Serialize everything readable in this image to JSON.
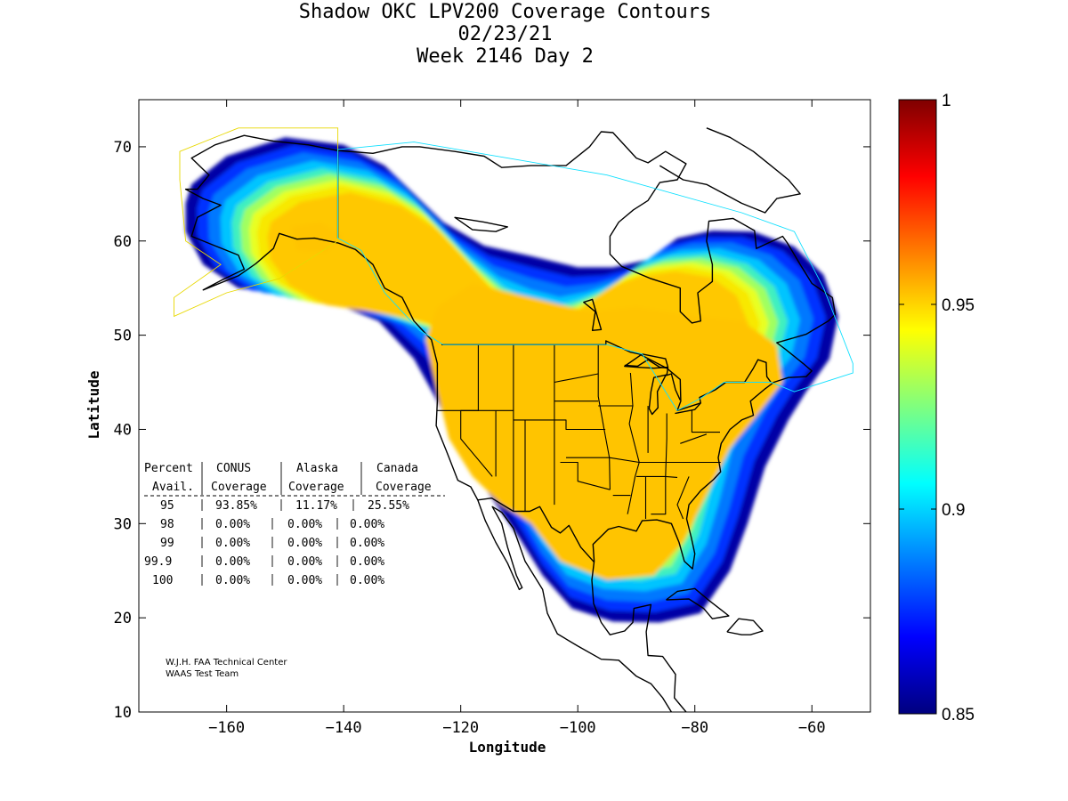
{
  "chart_data": {
    "type": "heatmap",
    "title": "Shadow OKC LPV200 Coverage Contours",
    "subtitle_date": "02/23/21",
    "subtitle_week": "Week 2146 Day 2",
    "xlabel": "Longitude",
    "ylabel": "Latitude",
    "xlim": [
      -175,
      -50
    ],
    "ylim": [
      10,
      75
    ],
    "x_ticks": [
      -160,
      -140,
      -120,
      -100,
      -80,
      -60
    ],
    "y_ticks": [
      10,
      20,
      30,
      40,
      50,
      60,
      70
    ],
    "colorbar": {
      "min": 0.85,
      "max": 1,
      "ticks": [
        0.85,
        0.9,
        0.95,
        1
      ],
      "tick_labels": [
        "0.85",
        "0.9",
        "0.95",
        "1"
      ],
      "colors": [
        "#00007f",
        "#0000ff",
        "#007fff",
        "#00ffff",
        "#7fff7f",
        "#ffff00",
        "#ff7f00",
        "#ff0000",
        "#7f0000"
      ]
    },
    "coverage_levels": [
      {
        "level": 0.86,
        "color": "#0000a6"
      },
      {
        "level": 0.87,
        "color": "#0030ff"
      },
      {
        "level": 0.88,
        "color": "#0078ff"
      },
      {
        "level": 0.895,
        "color": "#00c4ff"
      },
      {
        "level": 0.91,
        "color": "#40f0c0"
      },
      {
        "level": 0.925,
        "color": "#a0ff60"
      },
      {
        "level": 0.935,
        "color": "#e8ff20"
      },
      {
        "level": 0.945,
        "color": "#f8e800"
      },
      {
        "level": 0.95,
        "color": "#ffc800"
      }
    ],
    "coverage_table": {
      "header1": [
        "Percent",
        "CONUS",
        "Alaska",
        "Canada"
      ],
      "header2": [
        "Avail.",
        "Coverage",
        "Coverage",
        "Coverage"
      ],
      "rows": [
        {
          "percent": "95",
          "conus": "93.85%",
          "alaska": "11.17%",
          "canada": "25.55%"
        },
        {
          "percent": "98",
          "conus": "0.00%",
          "alaska": "0.00%",
          "canada": "0.00%"
        },
        {
          "percent": "99",
          "conus": "0.00%",
          "alaska": "0.00%",
          "canada": "0.00%"
        },
        {
          "percent": "99.9",
          "conus": "0.00%",
          "alaska": "0.00%",
          "canada": "0.00%"
        },
        {
          "percent": "100",
          "conus": "0.00%",
          "alaska": "0.00%",
          "canada": "0.00%"
        }
      ]
    },
    "credits": [
      "W.J.H. FAA Technical Center",
      "WAAS Test Team"
    ]
  }
}
